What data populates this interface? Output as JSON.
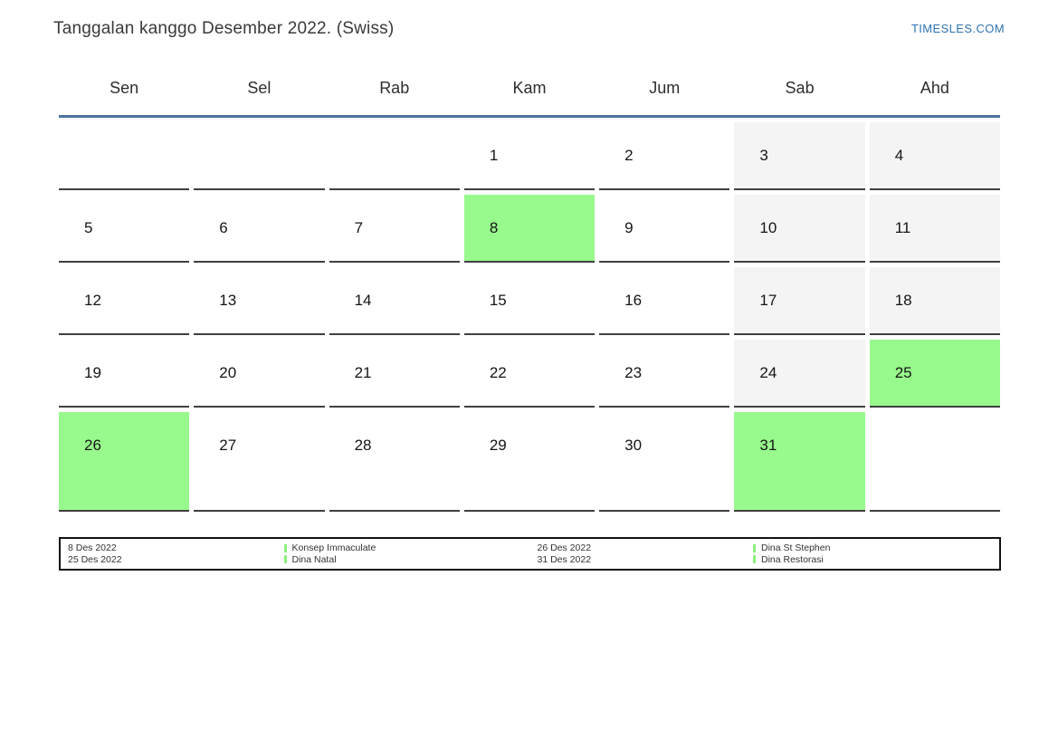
{
  "header": {
    "title": "Tanggalan kanggo Desember 2022. (Swiss)",
    "brand": "TIMESLES.COM"
  },
  "calendar": {
    "weekday_headers": [
      "Sen",
      "Sel",
      "Rab",
      "Kam",
      "Jum",
      "Sab",
      "Ahd"
    ],
    "weeks": [
      [
        {
          "day": "",
          "type": "empty"
        },
        {
          "day": "",
          "type": "empty"
        },
        {
          "day": "",
          "type": "empty"
        },
        {
          "day": "1",
          "type": "workday"
        },
        {
          "day": "2",
          "type": "workday"
        },
        {
          "day": "3",
          "type": "weekend"
        },
        {
          "day": "4",
          "type": "weekend"
        }
      ],
      [
        {
          "day": "5",
          "type": "workday"
        },
        {
          "day": "6",
          "type": "workday"
        },
        {
          "day": "7",
          "type": "workday"
        },
        {
          "day": "8",
          "type": "holiday"
        },
        {
          "day": "9",
          "type": "workday"
        },
        {
          "day": "10",
          "type": "weekend"
        },
        {
          "day": "11",
          "type": "weekend"
        }
      ],
      [
        {
          "day": "12",
          "type": "workday"
        },
        {
          "day": "13",
          "type": "workday"
        },
        {
          "day": "14",
          "type": "workday"
        },
        {
          "day": "15",
          "type": "workday"
        },
        {
          "day": "16",
          "type": "workday"
        },
        {
          "day": "17",
          "type": "weekend"
        },
        {
          "day": "18",
          "type": "weekend"
        }
      ],
      [
        {
          "day": "19",
          "type": "workday"
        },
        {
          "day": "20",
          "type": "workday"
        },
        {
          "day": "21",
          "type": "workday"
        },
        {
          "day": "22",
          "type": "workday"
        },
        {
          "day": "23",
          "type": "workday"
        },
        {
          "day": "24",
          "type": "weekend"
        },
        {
          "day": "25",
          "type": "holiday"
        }
      ],
      [
        {
          "day": "26",
          "type": "holiday"
        },
        {
          "day": "27",
          "type": "workday"
        },
        {
          "day": "28",
          "type": "workday"
        },
        {
          "day": "29",
          "type": "workday"
        },
        {
          "day": "30",
          "type": "workday"
        },
        {
          "day": "31",
          "type": "holiday"
        },
        {
          "day": "",
          "type": "empty"
        }
      ]
    ]
  },
  "legend": {
    "groups": [
      {
        "dates": [
          "8 Des 2022",
          "25 Des 2022"
        ],
        "events": [
          "Konsep Immaculate",
          "Dina Natal"
        ]
      },
      {
        "dates": [
          "26 Des 2022",
          "31 Des 2022"
        ],
        "events": [
          "Dina St Stephen",
          "Dina Restorasi"
        ]
      }
    ]
  },
  "colors": {
    "holiday_green": "#98fa8c",
    "weekend_gray": "#f4f4f4",
    "marker_green": "#8df07e",
    "brand_blue": "#2e74b5",
    "rule_blue": "#4e73a0"
  }
}
